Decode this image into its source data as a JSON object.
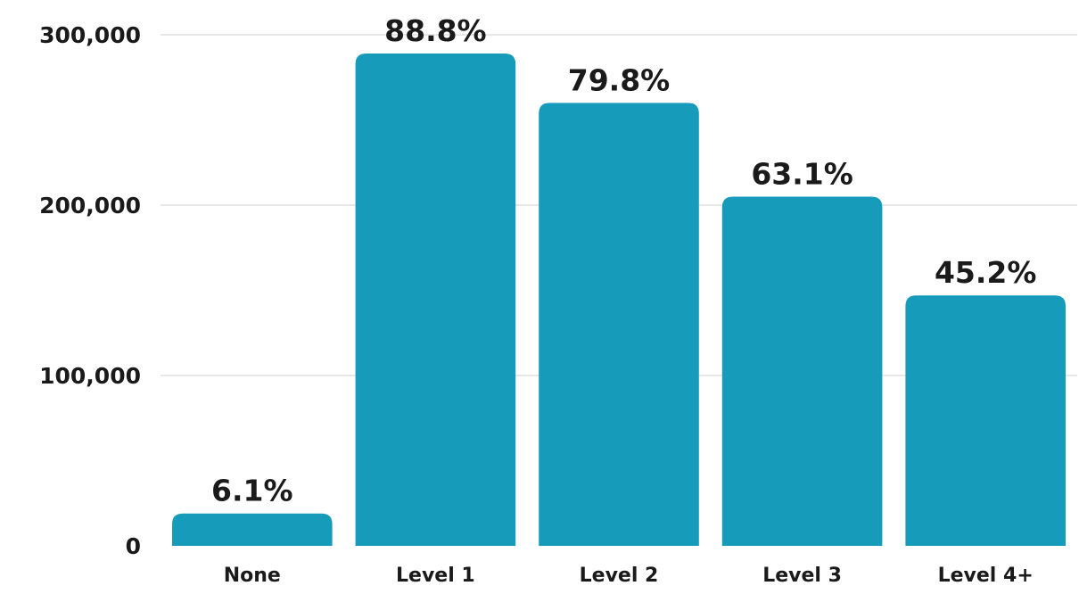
{
  "chart_data": {
    "type": "bar",
    "categories": [
      "None",
      "Level 1",
      "Level 2",
      "Level 3",
      "Level 4+"
    ],
    "values": [
      19000,
      289000,
      260000,
      205000,
      147000
    ],
    "data_labels": [
      "6.1%",
      "88.8%",
      "79.8%",
      "63.1%",
      "45.2%"
    ],
    "title": "",
    "xlabel": "",
    "ylabel": "",
    "ylim": [
      0,
      300000
    ],
    "y_ticks": [
      0,
      100000,
      200000,
      300000
    ],
    "y_tick_labels": [
      "0",
      "100,000",
      "200,000",
      "300,000"
    ],
    "grid": true,
    "bar_color": "#179bbb",
    "grid_color": "#cfcfcf",
    "text_color": "#1a1a1a"
  }
}
